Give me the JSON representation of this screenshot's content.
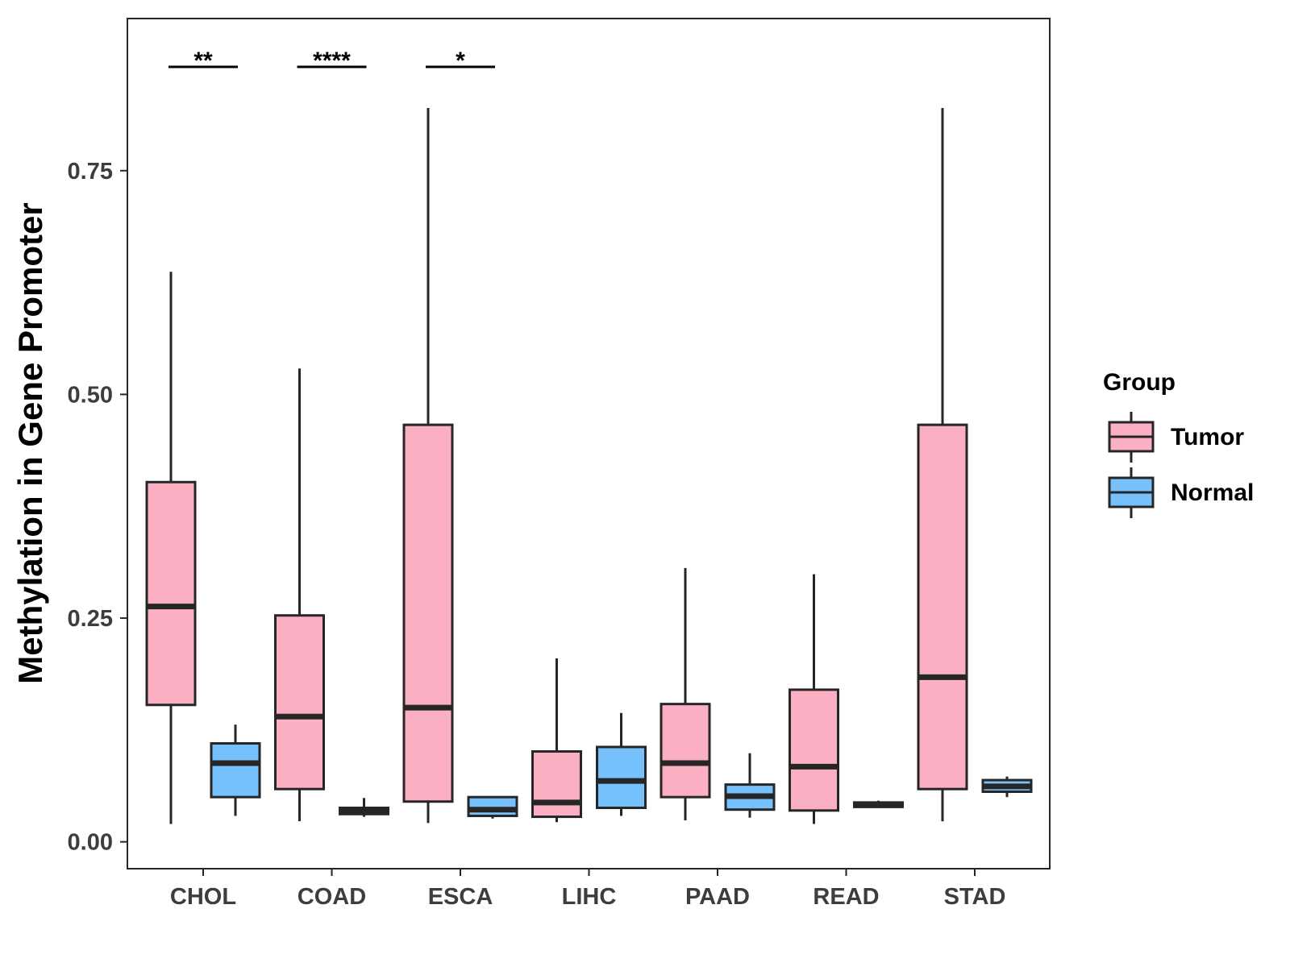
{
  "chart_data": {
    "type": "boxplot",
    "title": "",
    "xlabel": "",
    "ylabel": "Methylation in Gene Promoter",
    "ylim": [
      -0.03,
      0.92
    ],
    "yticks": [
      0.0,
      0.25,
      0.5,
      0.75
    ],
    "ytick_labels": [
      "0.00",
      "0.25",
      "0.50",
      "0.75"
    ],
    "grid": false,
    "categories": [
      "CHOL",
      "COAD",
      "ESCA",
      "LIHC",
      "PAAD",
      "READ",
      "STAD"
    ],
    "legend": {
      "title": "Group",
      "position": "right",
      "entries": [
        {
          "name": "Tumor",
          "color": "#fbafc2"
        },
        {
          "name": "Normal",
          "color": "#76c0fb"
        }
      ]
    },
    "series": [
      {
        "name": "Tumor",
        "color": "#fbafc2",
        "boxes": [
          {
            "category": "CHOL",
            "whisker_low": 0.02,
            "q1": 0.153,
            "median": 0.263,
            "q3": 0.402,
            "whisker_high": 0.637
          },
          {
            "category": "COAD",
            "whisker_low": 0.023,
            "q1": 0.059,
            "median": 0.14,
            "q3": 0.253,
            "whisker_high": 0.529
          },
          {
            "category": "ESCA",
            "whisker_low": 0.021,
            "q1": 0.045,
            "median": 0.15,
            "q3": 0.466,
            "whisker_high": 0.82
          },
          {
            "category": "LIHC",
            "whisker_low": 0.022,
            "q1": 0.028,
            "median": 0.044,
            "q3": 0.101,
            "whisker_high": 0.205
          },
          {
            "category": "PAAD",
            "whisker_low": 0.024,
            "q1": 0.05,
            "median": 0.088,
            "q3": 0.154,
            "whisker_high": 0.306
          },
          {
            "category": "READ",
            "whisker_low": 0.02,
            "q1": 0.035,
            "median": 0.084,
            "q3": 0.17,
            "whisker_high": 0.299
          },
          {
            "category": "STAD",
            "whisker_low": 0.023,
            "q1": 0.059,
            "median": 0.184,
            "q3": 0.466,
            "whisker_high": 0.82
          }
        ]
      },
      {
        "name": "Normal",
        "color": "#76c0fb",
        "boxes": [
          {
            "category": "CHOL",
            "whisker_low": 0.029,
            "q1": 0.05,
            "median": 0.088,
            "q3": 0.11,
            "whisker_high": 0.131
          },
          {
            "category": "COAD",
            "whisker_low": 0.028,
            "q1": 0.031,
            "median": 0.034,
            "q3": 0.038,
            "whisker_high": 0.049
          },
          {
            "category": "ESCA",
            "whisker_low": 0.026,
            "q1": 0.029,
            "median": 0.036,
            "q3": 0.05,
            "whisker_high": 0.05
          },
          {
            "category": "LIHC",
            "whisker_low": 0.029,
            "q1": 0.038,
            "median": 0.068,
            "q3": 0.106,
            "whisker_high": 0.144
          },
          {
            "category": "PAAD",
            "whisker_low": 0.027,
            "q1": 0.036,
            "median": 0.051,
            "q3": 0.064,
            "whisker_high": 0.099
          },
          {
            "category": "READ",
            "whisker_low": 0.038,
            "q1": 0.039,
            "median": 0.041,
            "q3": 0.044,
            "whisker_high": 0.046
          },
          {
            "category": "STAD",
            "whisker_low": 0.05,
            "q1": 0.056,
            "median": 0.062,
            "q3": 0.069,
            "whisker_high": 0.073
          }
        ]
      }
    ],
    "annotations": [
      {
        "category": "CHOL",
        "label": "**",
        "y": 0.866
      },
      {
        "category": "COAD",
        "label": "****",
        "y": 0.866
      },
      {
        "category": "ESCA",
        "label": "*",
        "y": 0.866
      }
    ]
  },
  "colors": {
    "tumor": "#fbafc2",
    "normal": "#76c0fb",
    "outline": "#262626",
    "tick_text": "#3d3d3d"
  }
}
